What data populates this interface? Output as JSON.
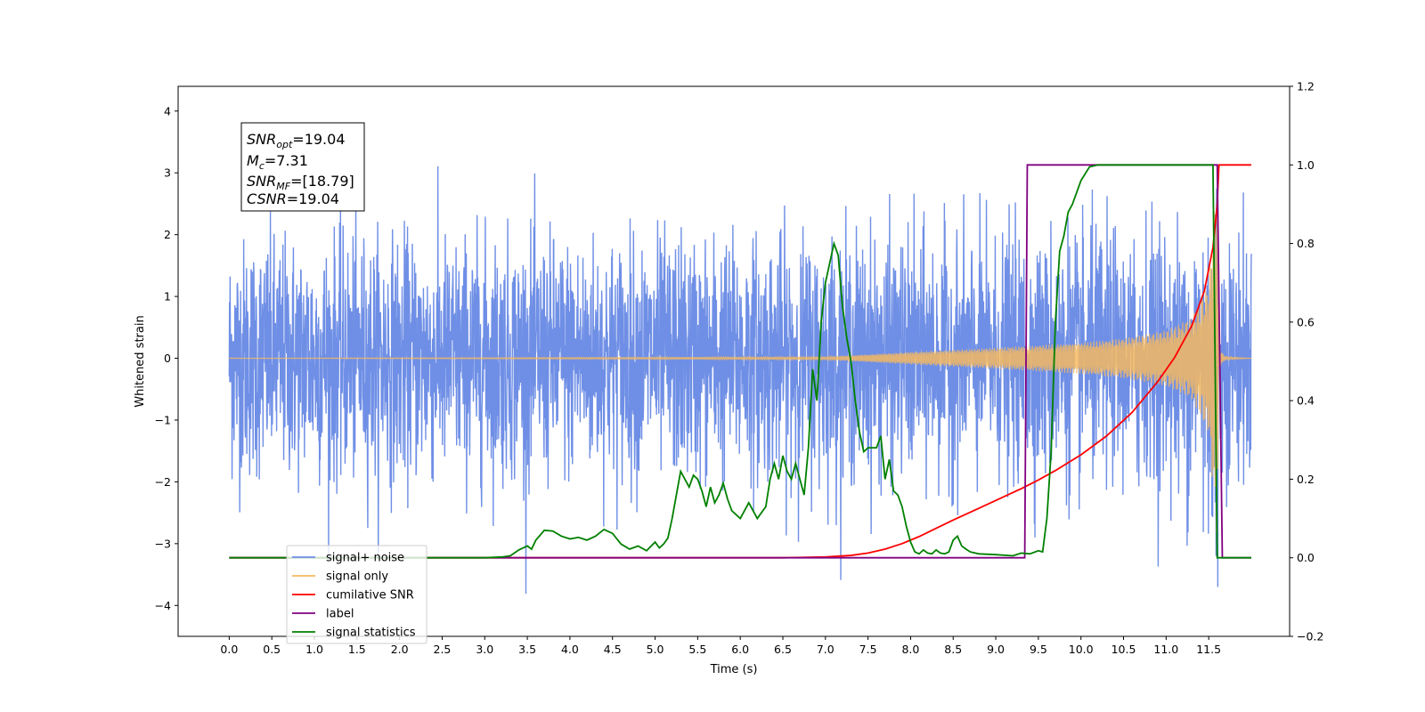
{
  "chart_data": {
    "type": "line",
    "xlabel": "Time (s)",
    "ylabel": "Whitened strain",
    "xlim": [
      -0.6,
      12.45
    ],
    "ylim": [
      -4.5,
      4.4
    ],
    "y2lim": [
      -0.2,
      1.2
    ],
    "x_ticks": [
      "0.0",
      "0.5",
      "1.0",
      "1.5",
      "2.0",
      "2.5",
      "3.0",
      "3.5",
      "4.0",
      "4.5",
      "5.0",
      "5.5",
      "6.0",
      "6.5",
      "7.0",
      "7.5",
      "8.0",
      "8.5",
      "9.0",
      "9.5",
      "10.0",
      "10.5",
      "11.0",
      "11.5"
    ],
    "y_ticks": [
      "4",
      "3",
      "2",
      "1",
      "0",
      "−1",
      "−2",
      "−3",
      "−4"
    ],
    "y2_ticks": [
      "1.2",
      "1.0",
      "0.8",
      "0.6",
      "0.4",
      "0.2",
      "0.0",
      "−0.2"
    ],
    "grid": false,
    "legend_position": "lower-left",
    "annotation": {
      "snr_opt": {
        "sym": "SNR",
        "sub": "opt",
        "val": "=19.04"
      },
      "mc": {
        "sym": "M",
        "sub": "c",
        "val": "=7.31"
      },
      "snr_mf": {
        "sym": "SNR",
        "sub": "MF",
        "val": "=[18.79]"
      },
      "csnr": {
        "sym": "CSNR",
        "val": "=19.04"
      }
    },
    "series": [
      {
        "name": "signal+ noise",
        "color": "#6f8fe6",
        "axis": "left",
        "description_values": {
          "x_range": [
            0.0,
            12.0
          ],
          "noise_std": 1.0,
          "peak_abs": 4.0
        }
      },
      {
        "name": "signal only",
        "color": "#f4b860",
        "axis": "left",
        "envelope": {
          "x": [
            0.0,
            7.0,
            8.0,
            9.0,
            10.0,
            10.5,
            11.0,
            11.3,
            11.5,
            11.6,
            11.62,
            11.7,
            12.0
          ],
          "amp": [
            0.0,
            0.02,
            0.1,
            0.17,
            0.25,
            0.32,
            0.45,
            0.65,
            1.2,
            3.0,
            0.15,
            0.02,
            0.0
          ]
        }
      },
      {
        "name": "cumilative SNR",
        "color": "#ff0000",
        "axis": "right",
        "x": [
          0,
          6.5,
          7.0,
          7.3,
          7.5,
          7.7,
          7.9,
          8.1,
          8.3,
          8.5,
          8.7,
          9.0,
          9.3,
          9.5,
          9.7,
          10.0,
          10.3,
          10.6,
          10.9,
          11.1,
          11.3,
          11.45,
          11.55,
          11.6,
          11.62,
          12.0
        ],
        "y": [
          0,
          0,
          0.002,
          0.006,
          0.012,
          0.022,
          0.036,
          0.054,
          0.075,
          0.096,
          0.116,
          0.146,
          0.176,
          0.198,
          0.222,
          0.262,
          0.31,
          0.37,
          0.448,
          0.51,
          0.59,
          0.68,
          0.79,
          0.9,
          1.0,
          1.0
        ]
      },
      {
        "name": "label",
        "color": "#800080",
        "axis": "right",
        "x": [
          0,
          9.34,
          9.37,
          11.6,
          11.66,
          12.0
        ],
        "y": [
          0,
          0,
          1,
          1,
          0,
          0
        ]
      },
      {
        "name": "signal statistics",
        "color": "#008000",
        "axis": "right",
        "x": [
          0,
          3.0,
          3.2,
          3.3,
          3.4,
          3.5,
          3.55,
          3.6,
          3.7,
          3.8,
          3.9,
          4.0,
          4.1,
          4.2,
          4.3,
          4.4,
          4.5,
          4.6,
          4.7,
          4.8,
          4.9,
          5.0,
          5.05,
          5.1,
          5.15,
          5.2,
          5.25,
          5.3,
          5.35,
          5.4,
          5.45,
          5.5,
          5.55,
          5.6,
          5.65,
          5.7,
          5.75,
          5.8,
          5.85,
          5.9,
          5.95,
          6.0,
          6.1,
          6.2,
          6.3,
          6.35,
          6.4,
          6.45,
          6.5,
          6.55,
          6.6,
          6.65,
          6.7,
          6.75,
          6.8,
          6.85,
          6.9,
          6.95,
          7.0,
          7.05,
          7.1,
          7.15,
          7.2,
          7.25,
          7.3,
          7.35,
          7.4,
          7.45,
          7.5,
          7.55,
          7.6,
          7.65,
          7.7,
          7.75,
          7.8,
          7.85,
          7.9,
          7.95,
          8.0,
          8.05,
          8.1,
          8.15,
          8.2,
          8.25,
          8.3,
          8.35,
          8.4,
          8.45,
          8.5,
          8.55,
          8.6,
          8.65,
          8.7,
          8.8,
          9.0,
          9.2,
          9.3,
          9.4,
          9.5,
          9.55,
          9.6,
          9.65,
          9.7,
          9.75,
          9.8,
          9.85,
          9.9,
          10.0,
          10.1,
          10.2,
          10.3,
          10.5,
          11.0,
          11.5,
          11.55,
          11.6,
          11.65,
          11.7,
          12.0
        ],
        "y": [
          0,
          0,
          0.002,
          0.005,
          0.02,
          0.03,
          0.022,
          0.045,
          0.07,
          0.068,
          0.055,
          0.048,
          0.052,
          0.045,
          0.055,
          0.072,
          0.062,
          0.035,
          0.022,
          0.03,
          0.018,
          0.04,
          0.025,
          0.035,
          0.05,
          0.1,
          0.16,
          0.22,
          0.2,
          0.18,
          0.21,
          0.2,
          0.17,
          0.13,
          0.18,
          0.14,
          0.16,
          0.19,
          0.15,
          0.12,
          0.11,
          0.1,
          0.14,
          0.1,
          0.13,
          0.2,
          0.24,
          0.2,
          0.26,
          0.22,
          0.2,
          0.24,
          0.2,
          0.16,
          0.28,
          0.48,
          0.4,
          0.6,
          0.7,
          0.75,
          0.8,
          0.77,
          0.64,
          0.56,
          0.5,
          0.4,
          0.32,
          0.27,
          0.28,
          0.28,
          0.28,
          0.31,
          0.2,
          0.25,
          0.17,
          0.16,
          0.13,
          0.08,
          0.04,
          0.015,
          0.01,
          0.02,
          0.012,
          0.01,
          0.02,
          0.012,
          0.01,
          0.015,
          0.045,
          0.055,
          0.03,
          0.022,
          0.015,
          0.01,
          0.008,
          0.005,
          0.012,
          0.01,
          0.018,
          0.015,
          0.1,
          0.27,
          0.6,
          0.78,
          0.82,
          0.88,
          0.9,
          0.96,
          0.995,
          1.0,
          1.0,
          1.0,
          1.0,
          1.0,
          1.0,
          0.0,
          0.0,
          0.0,
          0.0
        ]
      }
    ]
  }
}
